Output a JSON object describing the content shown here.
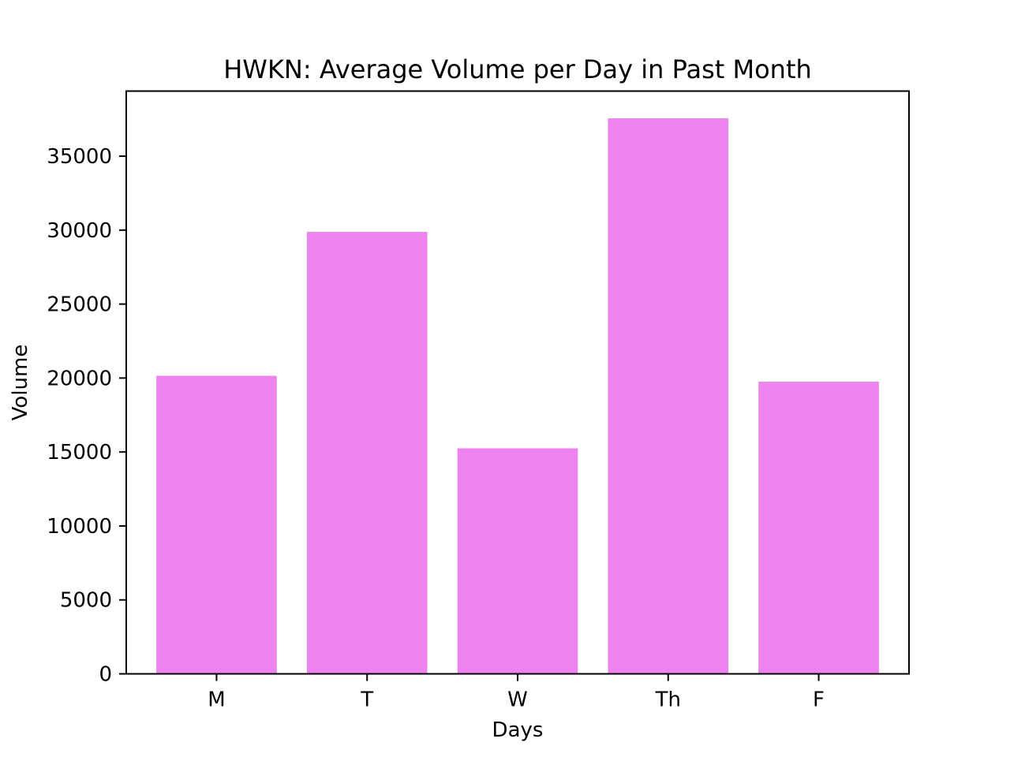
{
  "chart_data": {
    "type": "bar",
    "title": "HWKN: Average Volume per Day in Past Month",
    "xlabel": "Days",
    "ylabel": "Volume",
    "categories": [
      "M",
      "T",
      "W",
      "Th",
      "F"
    ],
    "values": [
      20150,
      29880,
      15250,
      37560,
      19750
    ],
    "ylim": [
      0,
      39400
    ],
    "yticks": [
      0,
      5000,
      10000,
      15000,
      20000,
      25000,
      30000,
      35000
    ],
    "bar_color": "#ee82ee",
    "grid": false
  }
}
